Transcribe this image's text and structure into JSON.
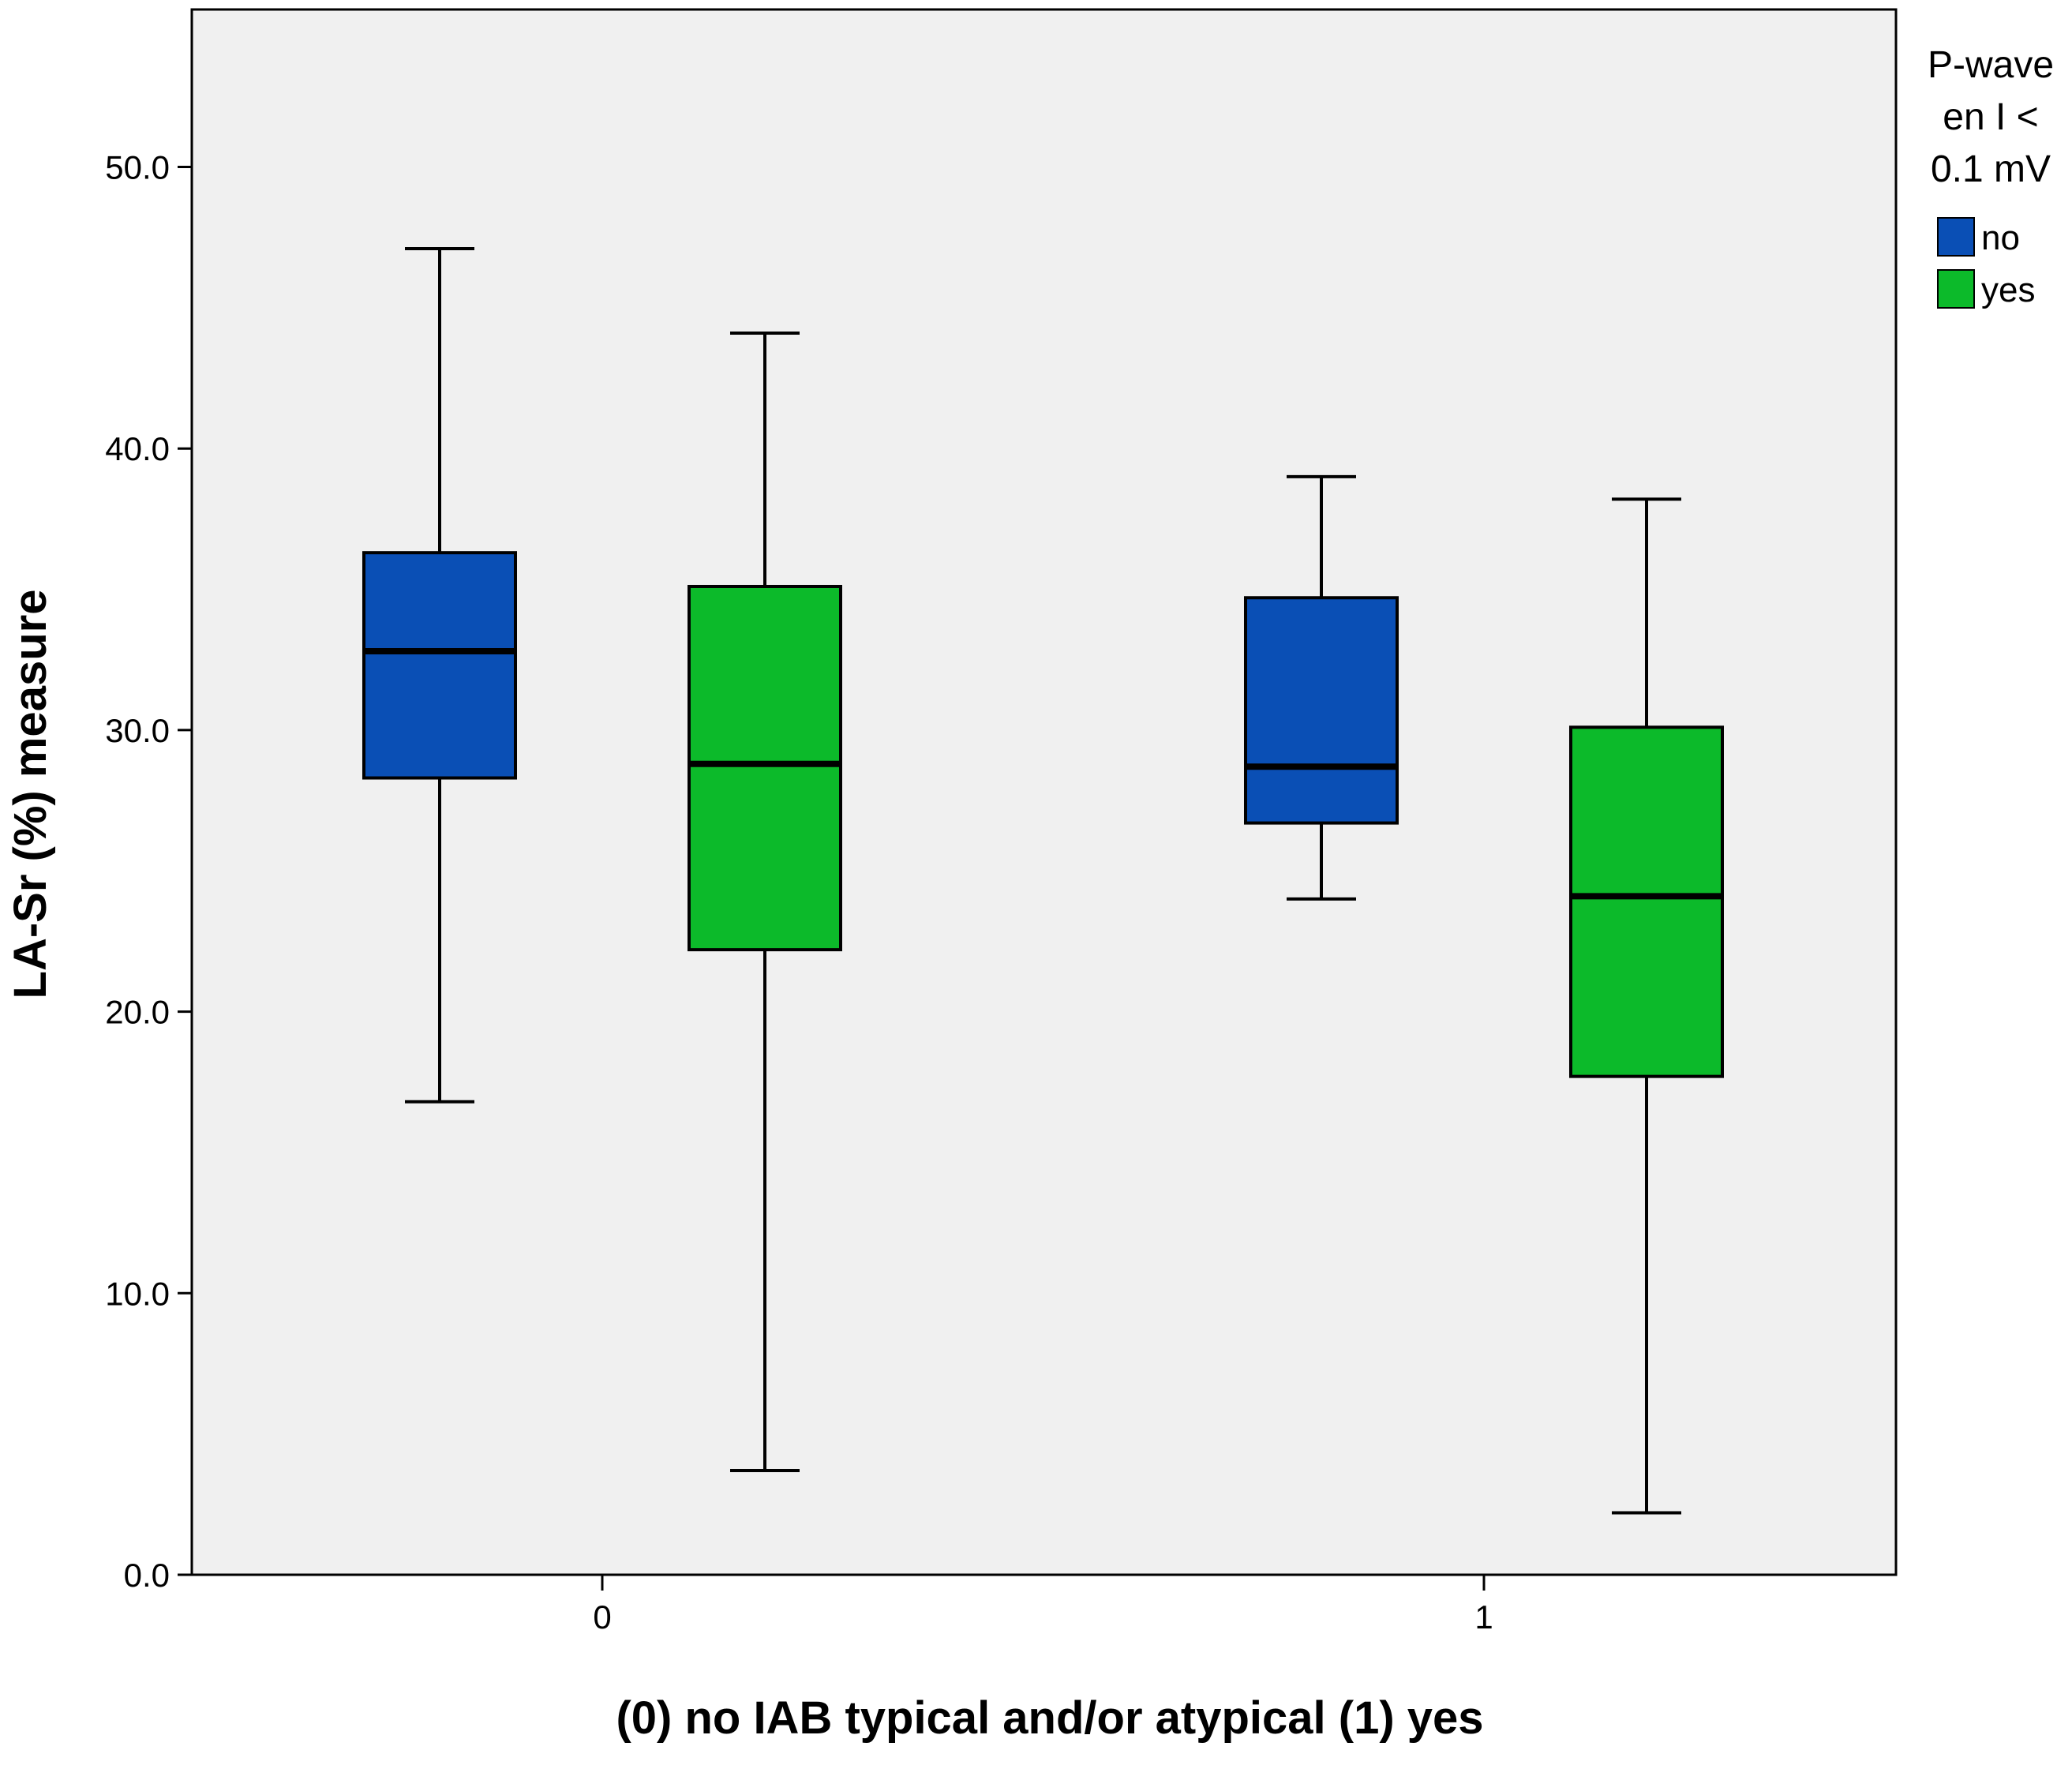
{
  "chart_data": {
    "type": "box",
    "title": "",
    "xlabel": "(0)  no IAB typical and/or atypical (1) yes",
    "ylabel": "LA-Sr (%) measure",
    "ylim": [
      0,
      55.5
    ],
    "yticks": [
      0,
      10,
      20,
      30,
      40,
      50
    ],
    "ytick_labels": [
      "0.0",
      "10.0",
      "20.0",
      "30.0",
      "40.0",
      "50.0"
    ],
    "categories": [
      "0",
      "1"
    ],
    "grid": false,
    "legend": {
      "title_lines": [
        "P-wave",
        "en I <",
        "0.1 mV"
      ],
      "placement": "right",
      "entries": [
        {
          "label": "no",
          "color": "#0a4fb5"
        },
        {
          "label": "yes",
          "color": "#0cba2a"
        }
      ]
    },
    "series": [
      {
        "name": "no",
        "color": "#0a4fb5",
        "boxes": [
          {
            "category": "0",
            "min": 16.8,
            "q1": 28.3,
            "median": 32.8,
            "q3": 36.3,
            "max": 47.1
          },
          {
            "category": "1",
            "min": 24.0,
            "q1": 26.7,
            "median": 28.7,
            "q3": 34.7,
            "max": 39.0
          }
        ]
      },
      {
        "name": "yes",
        "color": "#0cba2a",
        "boxes": [
          {
            "category": "0",
            "min": 3.7,
            "q1": 22.2,
            "median": 28.8,
            "q3": 35.1,
            "max": 44.1
          },
          {
            "category": "1",
            "min": 2.2,
            "q1": 17.7,
            "median": 24.1,
            "q3": 30.1,
            "max": 38.2
          }
        ]
      }
    ]
  }
}
